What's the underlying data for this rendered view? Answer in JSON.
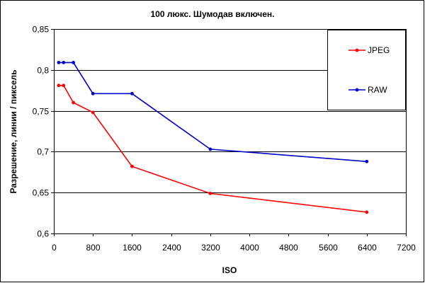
{
  "chart_data": {
    "type": "line",
    "title": "100 люкс. Шумодав включен.",
    "xlabel": "ISO",
    "ylabel": "Разрешение, линии / пиксель",
    "xlim": [
      0,
      7200
    ],
    "ylim": [
      0.6,
      0.85
    ],
    "x_ticks": [
      0,
      800,
      1600,
      2400,
      3200,
      4000,
      4800,
      5600,
      6400,
      7200
    ],
    "x_tick_labels": [
      "0",
      "800",
      "1600",
      "2400",
      "3200",
      "4000",
      "4800",
      "5600",
      "6400",
      "7200"
    ],
    "y_ticks": [
      0.6,
      0.65,
      0.7,
      0.75,
      0.8,
      0.85
    ],
    "y_tick_labels": [
      "0,6",
      "0,65",
      "0,7",
      "0,75",
      "0,8",
      "0,85"
    ],
    "grid": "horizontal",
    "legend_position": "top-right",
    "series": [
      {
        "name": "JPEG",
        "color": "#ff0000",
        "x": [
          100,
          200,
          400,
          800,
          1600,
          3200,
          6400
        ],
        "y": [
          0.781,
          0.781,
          0.76,
          0.748,
          0.682,
          0.649,
          0.626
        ]
      },
      {
        "name": "RAW",
        "color": "#0000cc",
        "x": [
          100,
          200,
          400,
          800,
          1600,
          3200,
          6400
        ],
        "y": [
          0.809,
          0.809,
          0.809,
          0.771,
          0.771,
          0.703,
          0.688
        ]
      }
    ]
  }
}
